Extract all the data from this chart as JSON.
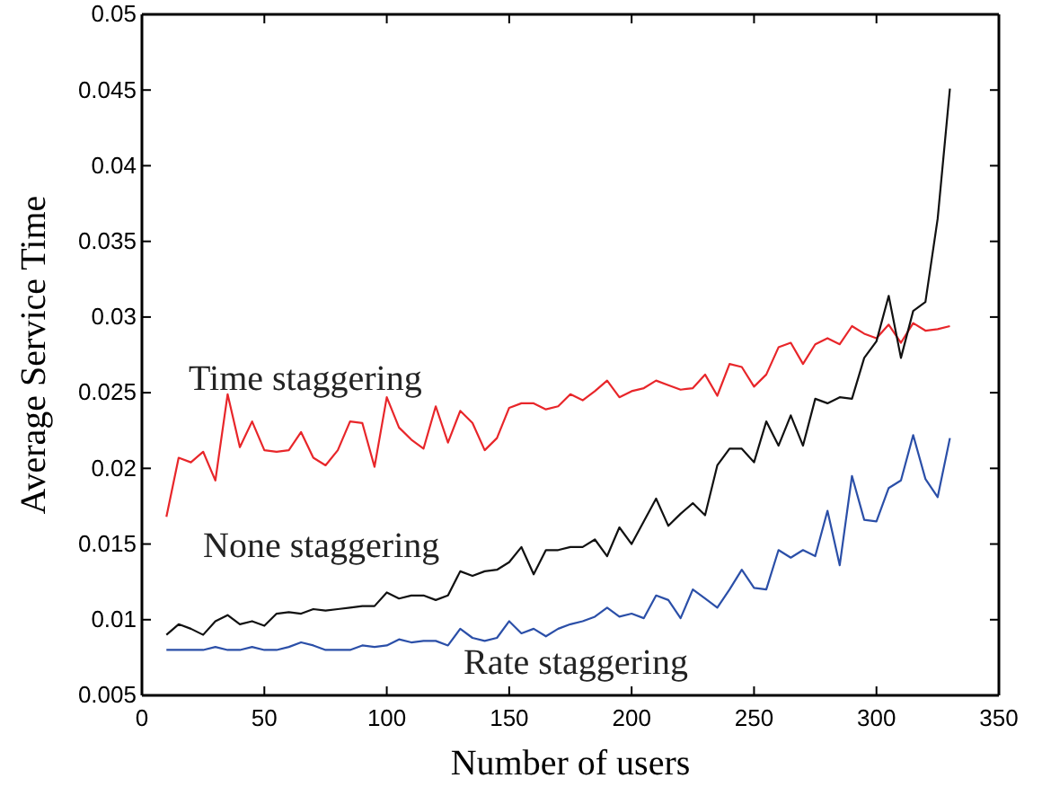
{
  "chart_data": {
    "type": "line",
    "xlabel": "Number of users",
    "ylabel": "Average Service Time",
    "x": [
      10,
      15,
      20,
      25,
      30,
      35,
      40,
      45,
      50,
      55,
      60,
      65,
      70,
      75,
      80,
      85,
      90,
      95,
      100,
      105,
      110,
      115,
      120,
      125,
      130,
      135,
      140,
      145,
      150,
      155,
      160,
      165,
      170,
      175,
      180,
      185,
      190,
      195,
      200,
      205,
      210,
      215,
      220,
      225,
      230,
      235,
      240,
      245,
      250,
      255,
      260,
      265,
      270,
      275,
      280,
      285,
      290,
      295,
      300,
      305,
      310,
      315,
      320,
      325,
      330
    ],
    "series": [
      {
        "name": "Time staggering",
        "color": "#e8262a",
        "values": [
          0.0168,
          0.0207,
          0.0204,
          0.0211,
          0.0192,
          0.0249,
          0.0214,
          0.0231,
          0.0212,
          0.0211,
          0.0212,
          0.0224,
          0.0207,
          0.0202,
          0.0212,
          0.0231,
          0.023,
          0.0201,
          0.0247,
          0.0227,
          0.0219,
          0.0213,
          0.0241,
          0.0217,
          0.0238,
          0.023,
          0.0212,
          0.022,
          0.024,
          0.0243,
          0.0243,
          0.0239,
          0.0241,
          0.0249,
          0.0245,
          0.0251,
          0.0258,
          0.0247,
          0.0251,
          0.0253,
          0.0258,
          0.0255,
          0.0252,
          0.0253,
          0.0262,
          0.0248,
          0.0269,
          0.0267,
          0.0254,
          0.0262,
          0.028,
          0.0283,
          0.0269,
          0.0282,
          0.0286,
          0.0282,
          0.0294,
          0.0289,
          0.0286,
          0.0295,
          0.0283,
          0.0296,
          0.0291,
          0.0292,
          0.0294
        ]
      },
      {
        "name": "None staggering",
        "color": "#111111",
        "values": [
          0.009,
          0.0097,
          0.0094,
          0.009,
          0.0099,
          0.0103,
          0.0097,
          0.0099,
          0.0096,
          0.0104,
          0.0105,
          0.0104,
          0.0107,
          0.0106,
          0.0107,
          0.0108,
          0.0109,
          0.0109,
          0.0118,
          0.0114,
          0.0116,
          0.0116,
          0.0113,
          0.0116,
          0.0132,
          0.0129,
          0.0132,
          0.0133,
          0.0138,
          0.0148,
          0.013,
          0.0146,
          0.0146,
          0.0148,
          0.0148,
          0.0153,
          0.0142,
          0.0161,
          0.015,
          0.0165,
          0.018,
          0.0162,
          0.017,
          0.0177,
          0.0169,
          0.0202,
          0.0213,
          0.0213,
          0.0204,
          0.0231,
          0.0215,
          0.0235,
          0.0215,
          0.0246,
          0.0243,
          0.0247,
          0.0246,
          0.0273,
          0.0284,
          0.0314,
          0.0273,
          0.0304,
          0.031,
          0.0365,
          0.0451
        ]
      },
      {
        "name": "Rate staggering",
        "color": "#2b4fa8",
        "values": [
          0.008,
          0.008,
          0.008,
          0.008,
          0.0082,
          0.008,
          0.008,
          0.0082,
          0.008,
          0.008,
          0.0082,
          0.0085,
          0.0083,
          0.008,
          0.008,
          0.008,
          0.0083,
          0.0082,
          0.0083,
          0.0087,
          0.0085,
          0.0086,
          0.0086,
          0.0083,
          0.0094,
          0.0088,
          0.0086,
          0.0088,
          0.0099,
          0.0091,
          0.0094,
          0.0089,
          0.0094,
          0.0097,
          0.0099,
          0.0102,
          0.0108,
          0.0102,
          0.0104,
          0.0101,
          0.0116,
          0.0113,
          0.0101,
          0.012,
          0.0114,
          0.0108,
          0.012,
          0.0133,
          0.0121,
          0.012,
          0.0146,
          0.0141,
          0.0146,
          0.0142,
          0.0172,
          0.0136,
          0.0195,
          0.0166,
          0.0165,
          0.0187,
          0.0192,
          0.0222,
          0.0193,
          0.0181,
          0.022
        ]
      }
    ],
    "xlim": [
      0,
      350
    ],
    "xticks": [
      0,
      50,
      100,
      150,
      200,
      250,
      300,
      350
    ],
    "ylim": [
      0.005,
      0.05
    ],
    "yticks": [
      0.005,
      0.01,
      0.015,
      0.02,
      0.025,
      0.03,
      0.035,
      0.04,
      0.045,
      0.05
    ],
    "grid": false,
    "legend": false,
    "marker": "none",
    "line_style": "solid"
  }
}
